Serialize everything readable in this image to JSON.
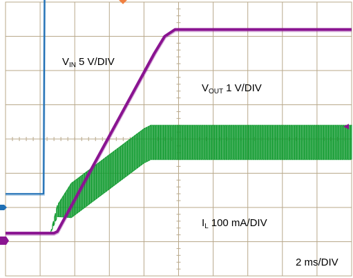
{
  "chart_data": {
    "type": "line",
    "grid": true,
    "grid_divisions": {
      "x": 10,
      "y": 8
    },
    "timebase": "2 ms/DIV",
    "series": [
      {
        "name_main": "V",
        "name_sub": "IN",
        "scale": "5 V/DIV",
        "color": "#1f6fb5",
        "x_div": [
          0,
          1.0,
          1.1,
          1.13,
          1.16,
          1.2,
          10
        ],
        "y_div": [
          2.4,
          2.4,
          2.4,
          8.5,
          8.3,
          8.35,
          8.35
        ]
      },
      {
        "name_main": "V",
        "name_sub": "OUT",
        "scale": "1 V/DIV",
        "color": "#8a1591",
        "x_div": [
          0,
          1.4,
          1.5,
          4.3,
          4.6,
          4.9,
          10
        ],
        "y_div": [
          1.25,
          1.25,
          1.3,
          6.5,
          7.0,
          7.2,
          7.2
        ]
      },
      {
        "name_main": "I",
        "name_sub": "L",
        "scale": "100 mA/DIV",
        "color": "#0f9a2e",
        "x_div": [
          0,
          1.3,
          1.5,
          4.0,
          4.2,
          10
        ],
        "y_div": [
          1.25,
          1.25,
          1.9,
          3.8,
          3.9,
          3.9
        ],
        "ripple_div": 1.0
      }
    ]
  },
  "colors": {
    "grid": "#b8a88a",
    "trigger_marker": "#f08040",
    "ground_marker": "#8a1591",
    "text": "#000000"
  }
}
